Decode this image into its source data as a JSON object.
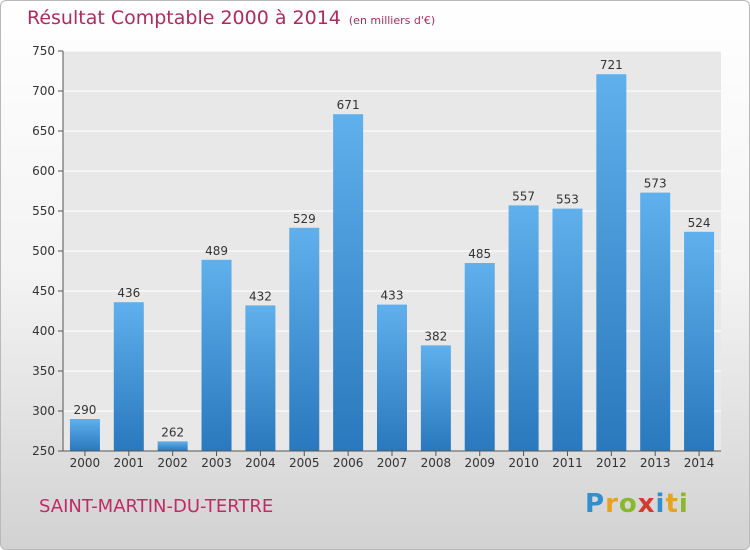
{
  "chart_data": {
    "type": "bar",
    "title": "Résultat Comptable 2000 à 2014",
    "subtitle": "(en milliers d'€)",
    "categories": [
      "2000",
      "2001",
      "2002",
      "2003",
      "2004",
      "2005",
      "2006",
      "2007",
      "2008",
      "2009",
      "2010",
      "2011",
      "2012",
      "2013",
      "2014"
    ],
    "values": [
      290,
      436,
      262,
      489,
      432,
      529,
      671,
      433,
      382,
      485,
      557,
      553,
      721,
      573,
      524
    ],
    "yticks": [
      250,
      300,
      350,
      400,
      450,
      500,
      550,
      600,
      650,
      700,
      750
    ],
    "ylim": [
      250,
      750
    ],
    "grid": true,
    "bar_color": "#3d8fd3"
  },
  "footer": {
    "commune": "SAINT-MARTIN-DU-TERTRE",
    "logo_letters": [
      {
        "ch": "P",
        "color": "#2f8fd0"
      },
      {
        "ch": "r",
        "color": "#e8a21b"
      },
      {
        "ch": "o",
        "color": "#8ab82d"
      },
      {
        "ch": "x",
        "color": "#d23b2e"
      },
      {
        "ch": "i",
        "color": "#2f8fd0"
      },
      {
        "ch": "t",
        "color": "#e8a21b"
      },
      {
        "ch": "i",
        "color": "#8ab82d"
      }
    ]
  }
}
